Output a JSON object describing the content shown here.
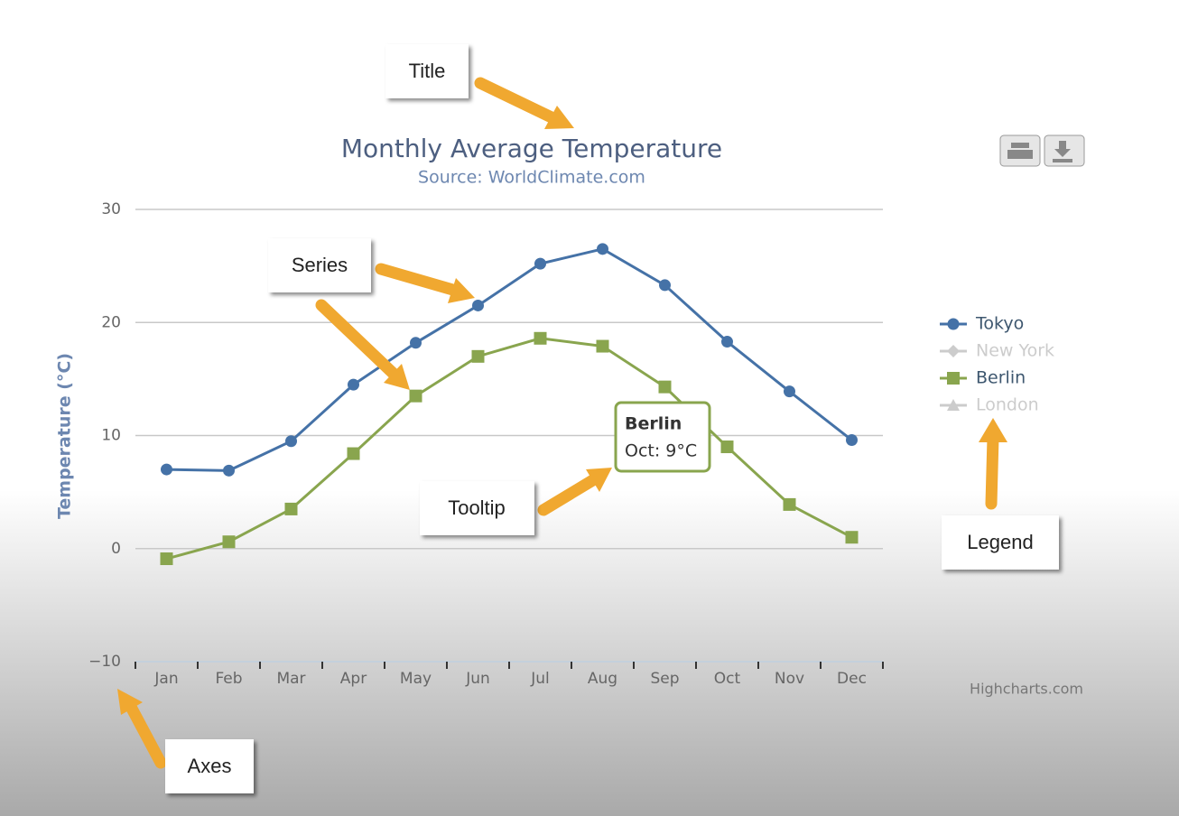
{
  "chart_data": {
    "type": "line",
    "title": "Monthly Average Temperature",
    "subtitle": "Source: WorldClimate.com",
    "y_axis_label": "Temperature (°C)",
    "categories": [
      "Jan",
      "Feb",
      "Mar",
      "Apr",
      "May",
      "Jun",
      "Jul",
      "Aug",
      "Sep",
      "Oct",
      "Nov",
      "Dec"
    ],
    "series": [
      {
        "name": "Tokyo",
        "color": "#4572a7",
        "marker": "circle",
        "visible": true,
        "values": [
          7.0,
          6.9,
          9.5,
          14.5,
          18.2,
          21.5,
          25.2,
          26.5,
          23.3,
          18.3,
          13.9,
          9.6
        ]
      },
      {
        "name": "New York",
        "color": "#cccccc",
        "marker": "diamond",
        "visible": false
      },
      {
        "name": "Berlin",
        "color": "#89a54e",
        "marker": "square",
        "visible": true,
        "values": [
          -0.9,
          0.6,
          3.5,
          8.4,
          13.5,
          17.0,
          18.6,
          17.9,
          14.3,
          9.0,
          3.9,
          1.0
        ]
      },
      {
        "name": "London",
        "color": "#cccccc",
        "marker": "triangle",
        "visible": false
      }
    ],
    "ylim": [
      -10,
      30
    ],
    "yticks": [
      {
        "value": -10,
        "label": "−10"
      },
      0,
      10,
      20,
      30
    ],
    "grid": true,
    "legend": "right",
    "tooltip": {
      "title": "Berlin",
      "text": "Oct: 9°C",
      "color": "#89a54e"
    },
    "credits": "Highcharts.com",
    "annotations": [
      "Title",
      "Series",
      "Tooltip",
      "Legend",
      "Axes"
    ]
  }
}
